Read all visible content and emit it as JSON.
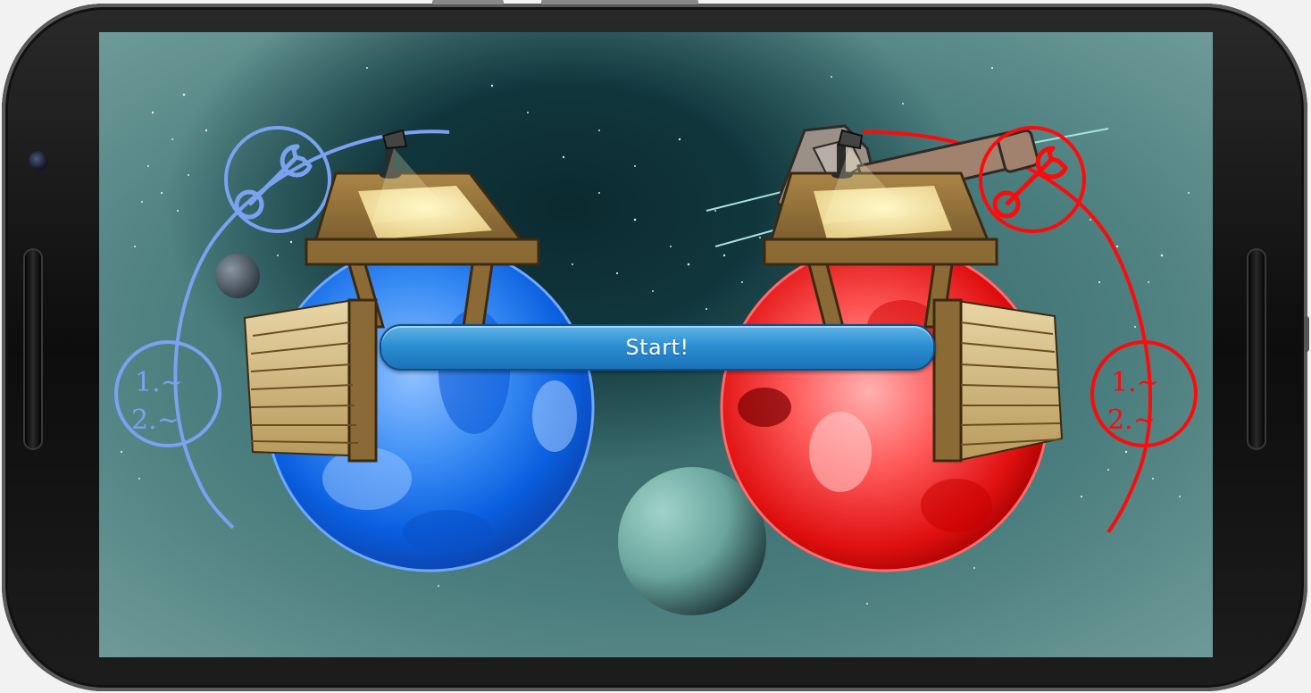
{
  "game": {
    "start_label": "Start!",
    "blue_player": {
      "color": "#7aa2f0",
      "list_line1": "1.~",
      "list_line2": "2.~"
    },
    "red_player": {
      "color": "#ff0a0a",
      "list_line1": "1.~",
      "list_line2": "2.~"
    }
  },
  "icons": [
    "wrench-icon",
    "list-icon",
    "desk-lamp-icon",
    "cannon-icon"
  ]
}
